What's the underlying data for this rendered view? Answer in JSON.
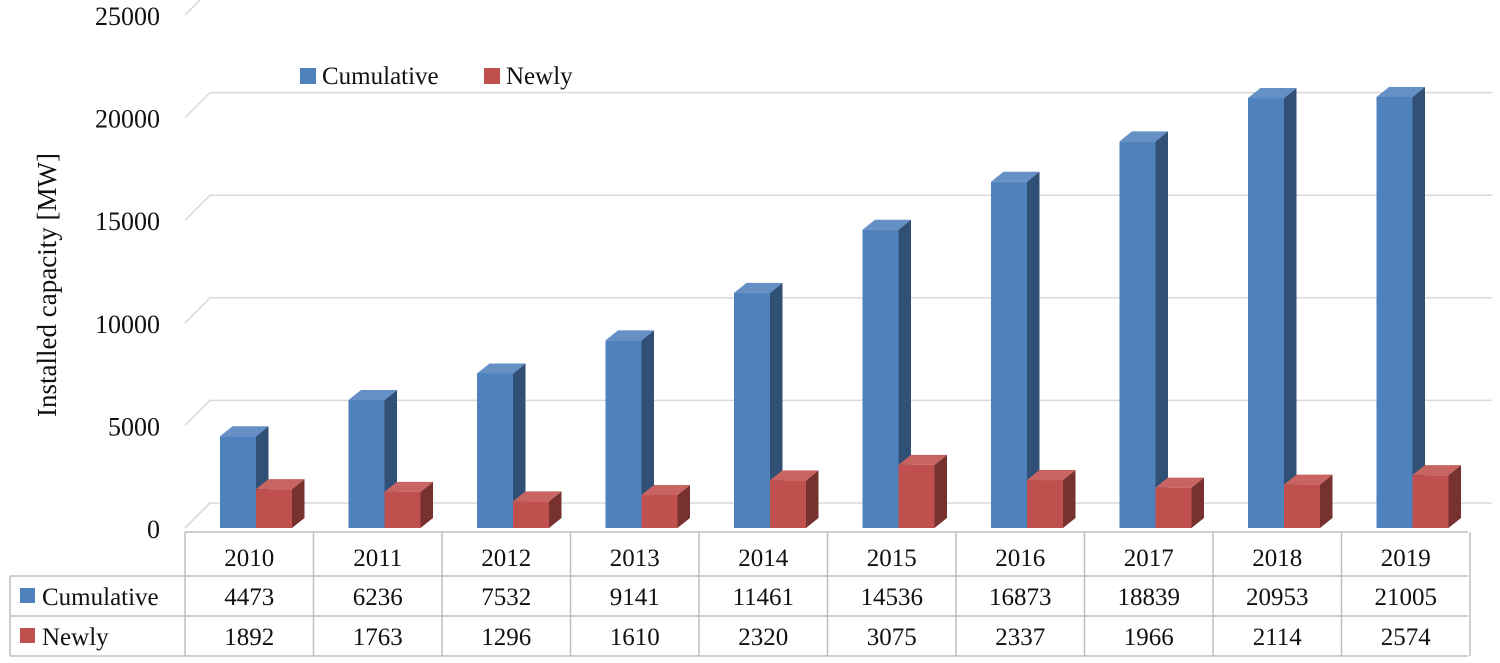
{
  "chart_data": {
    "type": "bar",
    "style": "3d-clustered-column-with-data-table",
    "categories": [
      "2010",
      "2011",
      "2012",
      "2013",
      "2014",
      "2015",
      "2016",
      "2017",
      "2018",
      "2019"
    ],
    "series": [
      {
        "name": "Cumulative",
        "color": "#4f81bd",
        "values": [
          4473,
          6236,
          7532,
          9141,
          11461,
          14536,
          16873,
          18839,
          20953,
          21005
        ]
      },
      {
        "name": "Newly",
        "color": "#c0504d",
        "values": [
          1892,
          1763,
          1296,
          1610,
          2320,
          3075,
          2337,
          1966,
          2114,
          2574
        ]
      }
    ],
    "ylabel": "Installed capacity [MW]",
    "xlabel": "",
    "ylim": [
      0,
      25000
    ],
    "yticks": [
      0,
      5000,
      10000,
      15000,
      20000,
      25000
    ],
    "grid": true,
    "legend": "top-left"
  }
}
